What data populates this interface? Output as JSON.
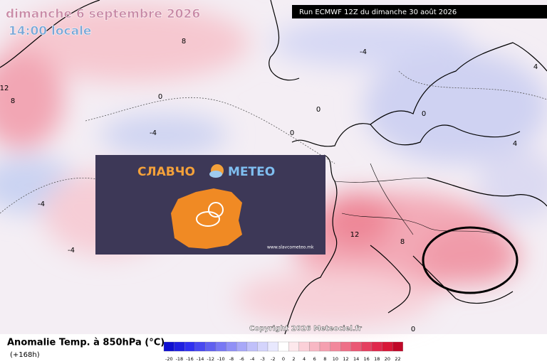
{
  "header": {
    "date": "dimanche 6 septembre 2026",
    "time": "14:00 locale",
    "run": "Run ECMWF 12Z du dimanche 30 août 2026"
  },
  "map": {
    "copyright": "Copyright 2026 Meteociel.fr",
    "contour_labels": [
      "8",
      "12",
      "8",
      "-4",
      "-4",
      "0",
      "-4",
      "0",
      "0",
      "4",
      "12",
      "8",
      "0",
      "4",
      "0",
      "-4"
    ]
  },
  "logo": {
    "name_left": "СЛАВЧО",
    "name_right": "МЕТЕО",
    "url": "www.slavcometeo.mk"
  },
  "legend": {
    "title": "Anomalie Temp. à 850hPa (°C)",
    "lead": "(+168h)",
    "ticks": [
      -20,
      -18,
      -16,
      -14,
      -12,
      -10,
      -8,
      -6,
      -4,
      -3,
      -2,
      0,
      2,
      4,
      6,
      8,
      10,
      12,
      14,
      16,
      18,
      20,
      22
    ]
  }
}
